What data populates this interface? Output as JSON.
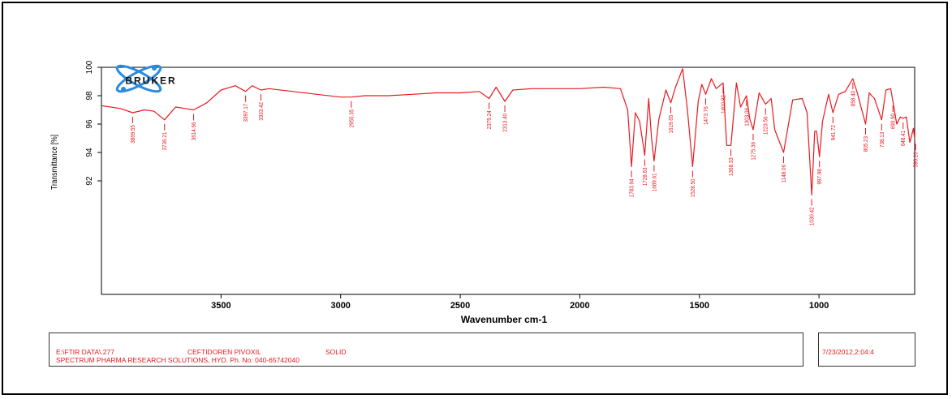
{
  "chart_data": {
    "type": "line",
    "xlabel": "Wavenumber cm-1",
    "ylabel": "Transmittance [%]",
    "x_reversed": true,
    "xlim": [
      4000,
      600
    ],
    "ylim": [
      84,
      100
    ],
    "x_ticks": [
      3500,
      3000,
      2500,
      2000,
      1500,
      1000
    ],
    "y_ticks": [
      92,
      94,
      96,
      98,
      100
    ],
    "line_color": "#e8191f",
    "series": [
      {
        "x": [
          4000,
          3920,
          3869.55,
          3820,
          3780,
          3736.21,
          3690,
          3650,
          3614.66,
          3560,
          3500,
          3440,
          3397.17,
          3370,
          3333.42,
          3300,
          3200,
          3100,
          3000,
          2955.35,
          2900,
          2800,
          2700,
          2600,
          2500,
          2420,
          2379.24,
          2350,
          2313.4,
          2280,
          2200,
          2100,
          2000,
          1900,
          1830,
          1800,
          1783.94,
          1768,
          1750,
          1728.63,
          1712,
          1700,
          1689.61,
          1670,
          1640,
          1619.65,
          1600,
          1570,
          1550,
          1528.5,
          1505,
          1490,
          1473.76,
          1450,
          1430,
          1400.92,
          1386,
          1368.33,
          1345,
          1328,
          1303.06,
          1290,
          1275.36,
          1250,
          1223.56,
          1200,
          1185,
          1148.06,
          1110,
          1070,
          1050,
          1030.42,
          1018,
          1010,
          997.98,
          985,
          960,
          941.72,
          918,
          890,
          858.4,
          840,
          805.23,
          790,
          780,
          768,
          738.13,
          720,
          700,
          690.9,
          675,
          660,
          648.41,
          635,
          620,
          605,
          600
        ],
        "y": [
          97.3,
          97.1,
          96.8,
          97.0,
          96.9,
          96.3,
          97.2,
          97.1,
          97.0,
          97.5,
          98.4,
          98.7,
          98.3,
          98.7,
          98.4,
          98.5,
          98.3,
          98.1,
          97.9,
          97.9,
          98.0,
          98.0,
          98.1,
          98.2,
          98.2,
          98.3,
          97.8,
          98.6,
          97.6,
          98.4,
          98.5,
          98.5,
          98.5,
          98.6,
          98.5,
          97.0,
          93.0,
          96.8,
          96.2,
          93.8,
          97.8,
          95.0,
          93.4,
          96.3,
          98.4,
          97.5,
          98.6,
          99.9,
          97.0,
          93.0,
          97.6,
          98.8,
          98.1,
          99.2,
          98.5,
          98.9,
          94.5,
          94.5,
          98.9,
          97.2,
          98.0,
          96.4,
          95.6,
          98.2,
          97.4,
          97.8,
          95.6,
          94.0,
          97.7,
          97.8,
          96.8,
          91.0,
          95.5,
          95.5,
          93.7,
          96.2,
          98.1,
          96.8,
          98.1,
          98.3,
          99.2,
          98.2,
          96.0,
          98.2,
          98.0,
          97.8,
          96.3,
          98.4,
          98.5,
          97.6,
          96.0,
          96.5,
          96.4,
          96.5,
          94.7,
          95.7,
          94.9
        ]
      }
    ],
    "peak_labels": [
      {
        "x": 3869.55,
        "label": "3869.55"
      },
      {
        "x": 3736.21,
        "label": "3736.21"
      },
      {
        "x": 3614.66,
        "label": "3614.66"
      },
      {
        "x": 3397.17,
        "label": "3397.17"
      },
      {
        "x": 3333.42,
        "label": "3333.42"
      },
      {
        "x": 2955.35,
        "label": "2955.35"
      },
      {
        "x": 2379.24,
        "label": "2379.24"
      },
      {
        "x": 2313.4,
        "label": "2313.40"
      },
      {
        "x": 1783.94,
        "label": "1783.94"
      },
      {
        "x": 1728.63,
        "label": "1728.63"
      },
      {
        "x": 1689.61,
        "label": "1689.61"
      },
      {
        "x": 1619.65,
        "label": "1619.65"
      },
      {
        "x": 1528.5,
        "label": "1528.50"
      },
      {
        "x": 1473.76,
        "label": "1473.76"
      },
      {
        "x": 1400.92,
        "label": "1400.92"
      },
      {
        "x": 1368.33,
        "label": "1368.33"
      },
      {
        "x": 1303.06,
        "label": "1303.06"
      },
      {
        "x": 1275.36,
        "label": "1275.36"
      },
      {
        "x": 1223.56,
        "label": "1223.56"
      },
      {
        "x": 1148.06,
        "label": "1148.06"
      },
      {
        "x": 1030.42,
        "label": "1030.42"
      },
      {
        "x": 997.98,
        "label": "997.98"
      },
      {
        "x": 941.72,
        "label": "941.72"
      },
      {
        "x": 858.4,
        "label": "858.40"
      },
      {
        "x": 805.23,
        "label": "805.23"
      },
      {
        "x": 738.13,
        "label": "738.13"
      },
      {
        "x": 690.9,
        "label": "690.90"
      },
      {
        "x": 648.41,
        "label": "648.41"
      },
      {
        "x": 596.2,
        "label": "596.20"
      }
    ]
  },
  "logo": {
    "text": "BRUKER",
    "icon": "bruker-atom-logo"
  },
  "footer": {
    "file_path": "E:\\FTIR DATA\\.277",
    "sample_name": "CEFTIDOREN PIVOXIL",
    "sample_state": "SOLID",
    "lab_info": "SPECTRUM PHARMA RESEARCH SOLUTIONS, HYD. Ph. No: 040-65742040",
    "timestamp": "7/23/2012,2:04:4"
  }
}
